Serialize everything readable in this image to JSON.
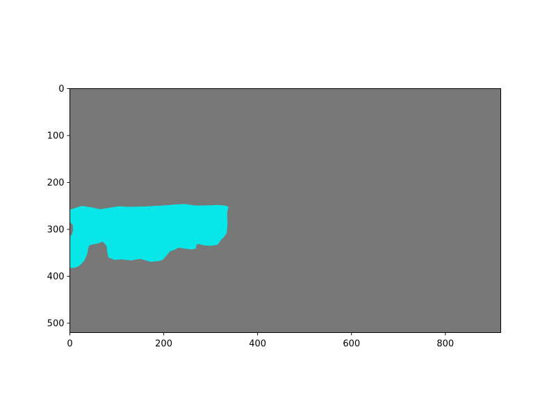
{
  "chart_data": {
    "type": "heatmap",
    "title": "",
    "xlabel": "",
    "ylabel": "",
    "xlim": [
      0,
      918
    ],
    "ylim": [
      520,
      0
    ],
    "x_ticks": [
      0,
      200,
      400,
      600,
      800
    ],
    "y_ticks": [
      0,
      100,
      200,
      300,
      400,
      500
    ],
    "grid": false,
    "legend": "none",
    "background_color": "#787878",
    "regions": [
      {
        "fill": "#08e6e8",
        "outline": [
          [
            0,
            258
          ],
          [
            10,
            255
          ],
          [
            25,
            250
          ],
          [
            45,
            253
          ],
          [
            65,
            257
          ],
          [
            85,
            254
          ],
          [
            105,
            251
          ],
          [
            130,
            252
          ],
          [
            165,
            251
          ],
          [
            200,
            249
          ],
          [
            225,
            247
          ],
          [
            245,
            246
          ],
          [
            265,
            249
          ],
          [
            290,
            249
          ],
          [
            315,
            248
          ],
          [
            330,
            249
          ],
          [
            338,
            252
          ],
          [
            335,
            265
          ],
          [
            336,
            290
          ],
          [
            334,
            308
          ],
          [
            328,
            317
          ],
          [
            322,
            322
          ],
          [
            315,
            333
          ],
          [
            300,
            335
          ],
          [
            285,
            334
          ],
          [
            275,
            331
          ],
          [
            270,
            333
          ],
          [
            268,
            341
          ],
          [
            260,
            343
          ],
          [
            245,
            341
          ],
          [
            232,
            339
          ],
          [
            222,
            344
          ],
          [
            213,
            347
          ],
          [
            205,
            357
          ],
          [
            198,
            365
          ],
          [
            188,
            368
          ],
          [
            172,
            369
          ],
          [
            150,
            363
          ],
          [
            130,
            366
          ],
          [
            110,
            364
          ],
          [
            95,
            365
          ],
          [
            82,
            360
          ],
          [
            80,
            350
          ],
          [
            78,
            335
          ],
          [
            70,
            326
          ],
          [
            60,
            330
          ],
          [
            45,
            333
          ],
          [
            40,
            336
          ],
          [
            37,
            353
          ],
          [
            30,
            368
          ],
          [
            20,
            378
          ],
          [
            10,
            382
          ],
          [
            0,
            382
          ]
        ]
      },
      {
        "fill": "#787878",
        "outline": [
          [
            0,
            285
          ],
          [
            6,
            290
          ],
          [
            7,
            302
          ],
          [
            4,
            312
          ],
          [
            0,
            314
          ]
        ]
      }
    ]
  }
}
